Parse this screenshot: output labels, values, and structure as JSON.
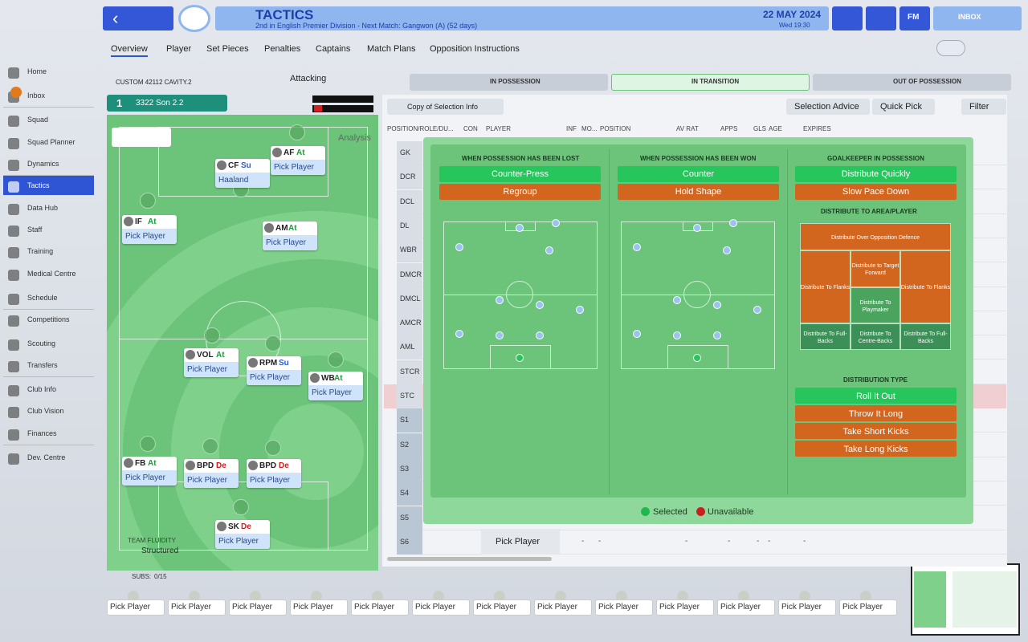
{
  "header": {
    "title": "TACTICS",
    "subtitle": "2nd in English Premier Division - Next Match: Gangwon (A) (52 days)",
    "date": "22 MAY 2024",
    "time": "Wed 19:30",
    "fm": "FM",
    "inbox": "INBOX"
  },
  "tabs": [
    "Overview",
    "Player",
    "Set Pieces",
    "Penalties",
    "Captains",
    "Match Plans",
    "Opposition Instructions"
  ],
  "sidebar": [
    "Home",
    "Inbox",
    "Squad",
    "Squad Planner",
    "Dynamics",
    "Tactics",
    "Data Hub",
    "Staff",
    "Training",
    "Medical Centre",
    "Schedule",
    "Competitions",
    "Scouting",
    "Transfers",
    "Club Info",
    "Club Vision",
    "Finances",
    "Dev. Centre"
  ],
  "tactic": {
    "name": "CUSTOM 42112 CAVITY.2",
    "mentality": "Attacking",
    "slot": "1",
    "slot_name": "3322 Son 2.2",
    "analysis": "Analysis",
    "fluidity_label": "TEAM FLUIDITY",
    "fluidity": "Structured",
    "subs_label": "SUBS:",
    "subs": "0/15"
  },
  "pitch": [
    {
      "role": "AF",
      "duty": "At",
      "player": "Pick Player"
    },
    {
      "role": "CF",
      "duty": "Su",
      "player": "Haaland"
    },
    {
      "role": "IF",
      "duty": "At",
      "player": "Pick Player"
    },
    {
      "role": "AM",
      "duty": "At",
      "player": "Pick Player"
    },
    {
      "role": "VOL",
      "duty": "At",
      "player": "Pick Player"
    },
    {
      "role": "RPM",
      "duty": "Su",
      "player": "Pick Player"
    },
    {
      "role": "WB",
      "duty": "At",
      "player": "Pick Player"
    },
    {
      "role": "FB",
      "duty": "At",
      "player": "Pick Player"
    },
    {
      "role": "BPD",
      "duty": "De",
      "player": "Pick Player"
    },
    {
      "role": "BPD",
      "duty": "De",
      "player": "Pick Player"
    },
    {
      "role": "SK",
      "duty": "De",
      "player": "Pick Player"
    }
  ],
  "phases": [
    "IN POSSESSION",
    "IN TRANSITION",
    "OUT OF POSSESSION"
  ],
  "toolbar": {
    "copy": "Copy of Selection Info",
    "advice": "Selection Advice",
    "quick": "Quick Pick",
    "filter": "Filter"
  },
  "columns": [
    "POSITION/ROLE/DU...",
    "CON",
    "PLAYER",
    "INF",
    "MO...",
    "POSITION",
    "AV RAT",
    "APPS",
    "GLS",
    "AGE",
    "EXPIRES"
  ],
  "positions": [
    "GK",
    "DCR",
    "DCL",
    "DL",
    "WBR",
    "DMCR",
    "DMCL",
    "AMCR",
    "AML",
    "STCR",
    "STC",
    "S1",
    "S2",
    "S3",
    "S4",
    "S5",
    "S6"
  ],
  "last_row": {
    "player": "Pick Player",
    "cells": [
      "-",
      "-",
      "-",
      "-",
      "-",
      "-",
      "-"
    ]
  },
  "transition": {
    "sections": [
      {
        "title": "WHEN POSSESSION HAS BEEN LOST",
        "options": [
          "Counter-Press",
          "Regroup"
        ]
      },
      {
        "title": "WHEN POSSESSION HAS BEEN WON",
        "options": [
          "Counter",
          "Hold Shape"
        ]
      },
      {
        "title": "GOALKEEPER IN POSSESSION",
        "options": [
          "Distribute Quickly",
          "Slow Pace Down"
        ]
      }
    ],
    "area_title": "DISTRIBUTE TO AREA/PLAYER",
    "areas": [
      "Distribute Over Opposition Defence",
      "Distribute to Target Forward",
      "Distribute To Flanks",
      "Distribute To Playmaker",
      "Distribute To Flanks",
      "Distribute To Full-Backs",
      "Distribute To Centre-Backs",
      "Distribute To Full-Backs"
    ],
    "type_title": "DISTRIBUTION TYPE",
    "types": [
      "Roll It Out",
      "Throw It Long",
      "Take Short Kicks",
      "Take Long Kicks"
    ],
    "legend": [
      "Selected",
      "Unavailable"
    ]
  },
  "subs": [
    "Pick Player",
    "Pick Player",
    "Pick Player",
    "Pick Player",
    "Pick Player",
    "Pick Player",
    "Pick Player",
    "Pick Player",
    "Pick Player",
    "Pick Player",
    "Pick Player",
    "Pick Player",
    "Pick Player"
  ]
}
